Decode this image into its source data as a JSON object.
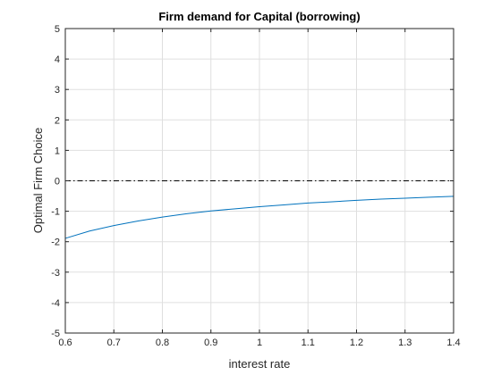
{
  "chart_data": {
    "type": "line",
    "title": "Firm demand for Capital (borrowing)",
    "xlabel": "interest rate",
    "ylabel": "Optimal Firm Choice",
    "xlim": [
      0.6,
      1.4
    ],
    "ylim": [
      -5,
      5
    ],
    "xticks": [
      "0.6",
      "0.7",
      "0.8",
      "0.9",
      "1",
      "1.1",
      "1.2",
      "1.3",
      "1.4"
    ],
    "yticks": [
      "-5",
      "-4",
      "-3",
      "-2",
      "-1",
      "0",
      "1",
      "2",
      "3",
      "4",
      "5"
    ],
    "grid": true,
    "legend": "none",
    "series": [
      {
        "style": "solid",
        "color": "#0072bd",
        "x": [
          0.6,
          0.65,
          0.7,
          0.75,
          0.8,
          0.85,
          0.9,
          0.95,
          1.0,
          1.05,
          1.1,
          1.15,
          1.2,
          1.25,
          1.3,
          1.35,
          1.4
        ],
        "y": [
          -1.89,
          -1.65,
          -1.47,
          -1.32,
          -1.19,
          -1.08,
          -0.99,
          -0.92,
          -0.85,
          -0.79,
          -0.73,
          -0.69,
          -0.64,
          -0.6,
          -0.57,
          -0.54,
          -0.51
        ]
      },
      {
        "style": "dashdot",
        "color": "#000000",
        "x": [
          0.6,
          1.4
        ],
        "y": [
          0,
          0
        ]
      }
    ]
  }
}
